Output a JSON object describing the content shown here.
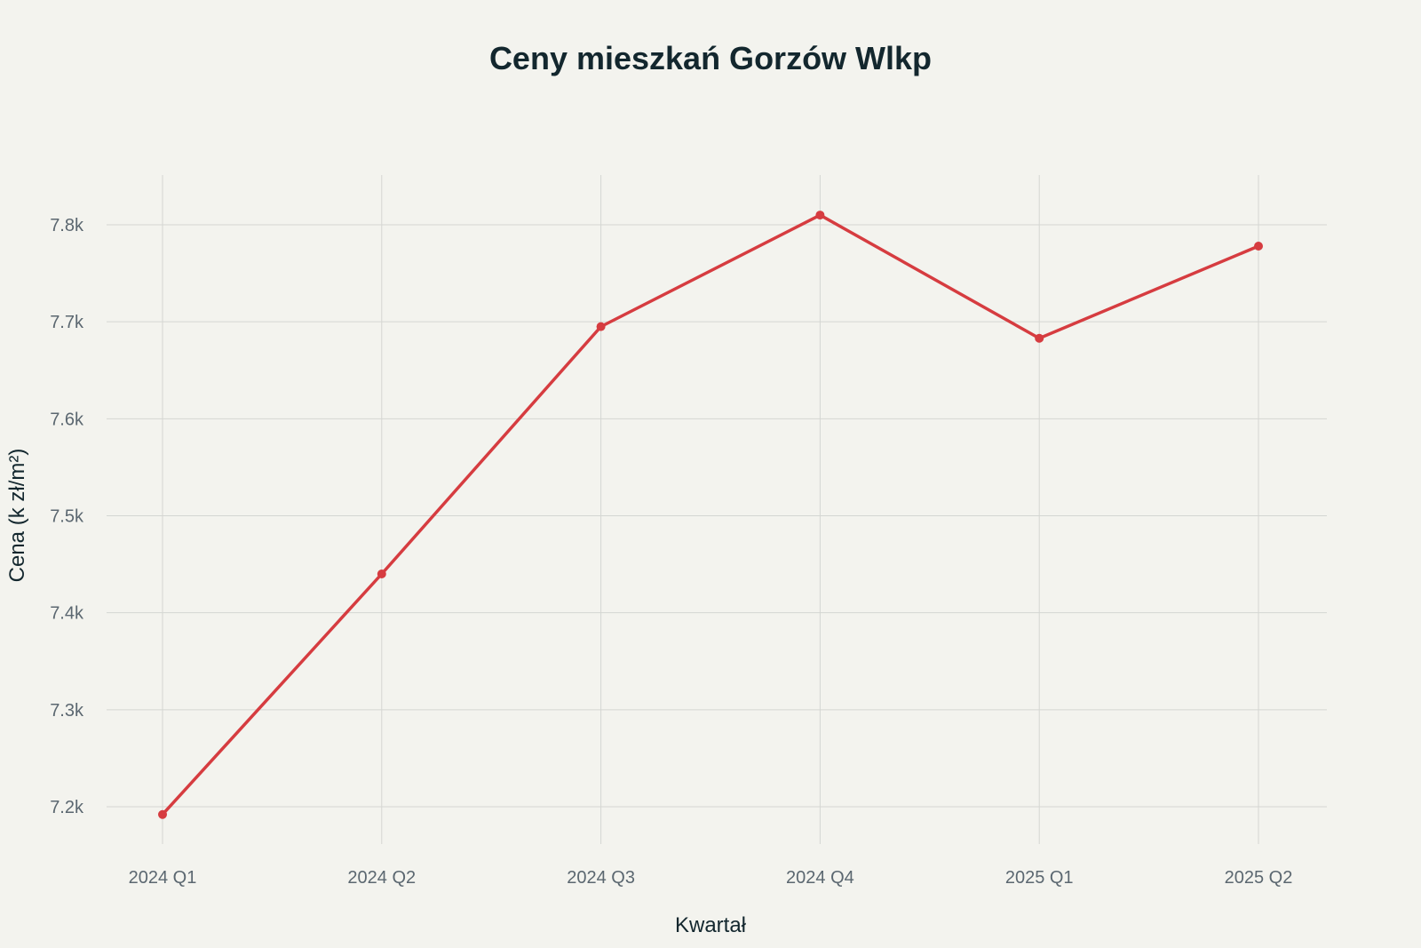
{
  "chart_data": {
    "type": "line",
    "title": "Ceny mieszkań Gorzów Wlkp",
    "xlabel": "Kwartał",
    "ylabel": "Cena (k zł/m²)",
    "categories": [
      "2024 Q1",
      "2024 Q2",
      "2024 Q3",
      "2024 Q4",
      "2025 Q1",
      "2025 Q2"
    ],
    "series": [
      {
        "values": [
          7192,
          7440,
          7695,
          7810,
          7683,
          7778
        ],
        "color": "#d63c40"
      }
    ],
    "ylim": [
      7150,
      7850
    ],
    "yticks": [
      7200,
      7300,
      7400,
      7500,
      7600,
      7700,
      7800
    ],
    "ytick_labels": [
      "7.2k",
      "7.3k",
      "7.4k",
      "7.5k",
      "7.6k",
      "7.7k",
      "7.8k"
    ],
    "grid": true,
    "legend": "none",
    "markers": true
  }
}
